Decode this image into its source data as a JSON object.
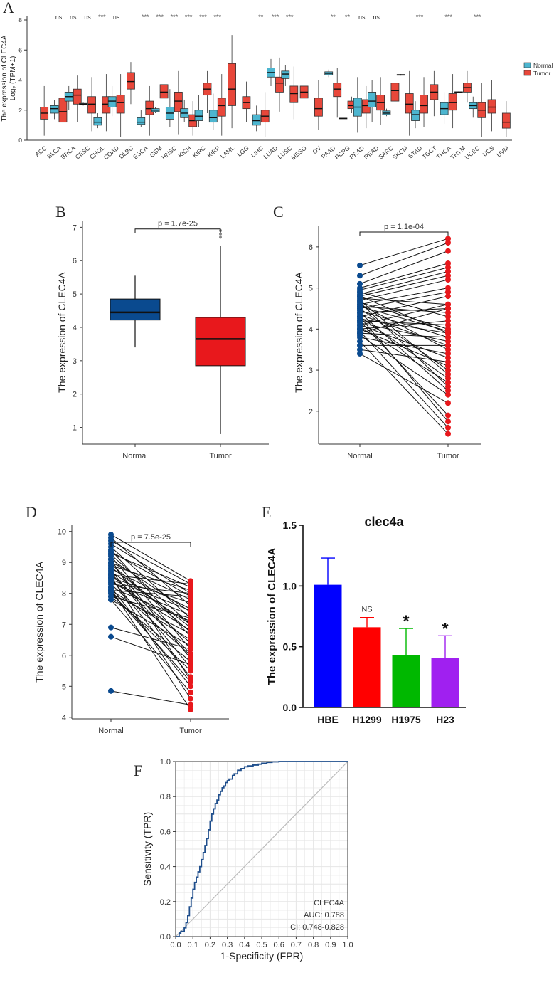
{
  "panels": {
    "A": "A",
    "B": "B",
    "C": "C",
    "D": "D",
    "E": "E",
    "F": "F"
  },
  "chart_data": [
    {
      "panel": "A",
      "type": "box",
      "ylabel_line1": "The expression of CLEC4A",
      "ylabel_line2_base": "Log",
      "ylabel_line2_sub": "2",
      "ylabel_line2_rest": " (TPM+1)",
      "ylim": [
        0,
        8
      ],
      "yticks": [
        0,
        2,
        4,
        6,
        8
      ],
      "legend": {
        "placement": "right",
        "entries": [
          "Normal",
          "Tumor"
        ]
      },
      "colors": {
        "normal": "#4db6d0",
        "tumor": "#e8473a"
      },
      "categories": [
        "ACC",
        "BLCA",
        "BRCA",
        "CESC",
        "CHOL",
        "COAD",
        "DLBC",
        "ESCA",
        "GBM",
        "HNSC",
        "KICH",
        "KIRC",
        "KIRP",
        "LAML",
        "LGG",
        "LIHC",
        "LUAD",
        "LUSC",
        "MESO",
        "OV",
        "PAAD",
        "PCPG",
        "PRAD",
        "READ",
        "SARC",
        "SKCM",
        "STAD",
        "TGCT",
        "THCA",
        "THYM",
        "UCEC",
        "UCS",
        "UVM"
      ],
      "significance": [
        "",
        "ns",
        "ns",
        "ns",
        "***",
        "ns",
        "",
        "***",
        "***",
        "***",
        "***",
        "***",
        "***",
        "",
        "",
        "**",
        "***",
        "***",
        "",
        "",
        "**",
        "**",
        "ns",
        "ns",
        "",
        "",
        "***",
        "",
        "***",
        "",
        "***",
        "",
        ""
      ],
      "normal": [
        null,
        [
          1.4,
          1.8,
          2.1,
          2.3,
          2.7
        ],
        [
          2.0,
          2.6,
          2.9,
          3.2,
          3.6
        ],
        [
          2.3,
          2.35,
          2.4,
          2.45,
          2.5
        ],
        [
          0.8,
          1.0,
          1.2,
          1.5,
          1.8
        ],
        [
          1.6,
          2.2,
          2.6,
          2.9,
          3.6
        ],
        null,
        [
          0.9,
          1.05,
          1.2,
          1.5,
          2.0
        ],
        [
          1.8,
          1.9,
          2.0,
          2.1,
          2.2
        ],
        [
          0.9,
          1.4,
          1.8,
          2.2,
          3.4
        ],
        [
          1.2,
          1.5,
          1.8,
          2.1,
          2.7
        ],
        [
          0.9,
          1.3,
          1.6,
          2.0,
          3.0
        ],
        [
          0.7,
          1.2,
          1.5,
          2.0,
          3.1
        ],
        null,
        null,
        [
          0.6,
          1.0,
          1.3,
          1.7,
          2.3
        ],
        [
          3.6,
          4.2,
          4.5,
          4.8,
          5.4
        ],
        [
          3.6,
          4.1,
          4.4,
          4.6,
          5.0
        ],
        null,
        null,
        [
          4.2,
          4.35,
          4.45,
          4.55,
          4.7
        ],
        [
          1.42,
          1.43,
          1.45,
          1.47,
          1.48
        ],
        [
          0.5,
          1.6,
          2.2,
          2.8,
          4.2
        ],
        [
          1.2,
          2.2,
          2.6,
          3.2,
          4.0
        ],
        [
          1.6,
          1.7,
          1.8,
          1.95,
          2.1
        ],
        [
          4.3,
          4.32,
          4.35,
          4.37,
          4.4
        ],
        [
          0.8,
          1.3,
          1.7,
          2.0,
          2.6
        ],
        null,
        [
          1.1,
          1.7,
          2.1,
          2.5,
          3.2
        ],
        [
          3.15,
          3.18,
          3.2,
          3.22,
          3.25
        ],
        [
          1.5,
          2.1,
          2.3,
          2.5,
          2.9
        ],
        null,
        null
      ],
      "tumor": [
        [
          0.3,
          1.4,
          1.8,
          2.2,
          3.6
        ],
        [
          0.2,
          1.2,
          1.9,
          2.8,
          4.2
        ],
        [
          1.2,
          2.4,
          3.0,
          3.4,
          4.3
        ],
        [
          0.6,
          1.8,
          2.4,
          2.9,
          4.2
        ],
        [
          0.6,
          1.8,
          2.4,
          2.9,
          4.4
        ],
        [
          0.2,
          1.8,
          2.5,
          3.0,
          4.4
        ],
        [
          2.4,
          3.4,
          3.9,
          4.5,
          5.2
        ],
        [
          0.3,
          1.7,
          2.1,
          2.6,
          3.6
        ],
        [
          1.8,
          2.8,
          3.2,
          3.7,
          4.4
        ],
        [
          0.4,
          1.9,
          2.6,
          3.2,
          4.6
        ],
        [
          0.3,
          0.9,
          1.3,
          1.7,
          2.6
        ],
        [
          1.8,
          3.0,
          3.4,
          3.8,
          4.6
        ],
        [
          0.3,
          1.6,
          2.3,
          2.8,
          4.4
        ],
        [
          0.8,
          2.3,
          3.4,
          5.1,
          7.0
        ],
        [
          1.2,
          2.1,
          2.5,
          2.9,
          3.9
        ],
        [
          0.2,
          1.2,
          1.6,
          2.0,
          3.2
        ],
        [
          1.9,
          3.2,
          3.8,
          4.2,
          5.5
        ],
        [
          1.4,
          2.5,
          3.1,
          3.6,
          4.9
        ],
        [
          1.6,
          2.8,
          3.2,
          3.6,
          4.4
        ],
        [
          0.7,
          1.6,
          2.1,
          2.8,
          4.0
        ],
        [
          1.5,
          2.9,
          3.4,
          3.8,
          4.8
        ],
        [
          1.8,
          2.1,
          2.3,
          2.6,
          2.9
        ],
        [
          0.8,
          1.8,
          2.3,
          2.7,
          3.6
        ],
        [
          1.0,
          2.0,
          2.5,
          3.0,
          4.2
        ],
        [
          1.1,
          2.6,
          3.3,
          3.8,
          5.2
        ],
        [
          0.3,
          1.8,
          2.4,
          3.1,
          4.6
        ],
        [
          0.9,
          1.8,
          2.3,
          3.0,
          4.2
        ],
        [
          1.6,
          2.7,
          3.2,
          3.7,
          4.6
        ],
        [
          0.8,
          2.0,
          2.5,
          3.1,
          4.4
        ],
        [
          2.5,
          3.2,
          3.5,
          3.8,
          4.6
        ],
        [
          0.2,
          1.5,
          2.0,
          2.5,
          3.8
        ],
        [
          0.6,
          1.8,
          2.2,
          2.7,
          4.0
        ],
        [
          0.2,
          0.8,
          1.2,
          1.8,
          2.6
        ]
      ]
    },
    {
      "panel": "B",
      "type": "box",
      "ylabel": "The expression of CLEC4A",
      "categories": [
        "Normal",
        "Tumor"
      ],
      "ylim": [
        0.5,
        7.2
      ],
      "yticks": [
        1,
        2,
        3,
        4,
        5,
        6,
        7
      ],
      "pvalue": "p = 1.7e-25",
      "colors": [
        "#0a4a8f",
        "#e8181c"
      ],
      "boxes": [
        [
          3.4,
          4.22,
          4.45,
          4.85,
          5.55
        ],
        [
          0.8,
          2.85,
          3.65,
          4.3,
          6.45
        ]
      ],
      "outliers": [
        [],
        [
          6.7,
          6.8,
          6.9
        ]
      ]
    },
    {
      "panel": "C",
      "type": "paired-dot",
      "ylabel": "The expression of CLEC4A",
      "categories": [
        "Normal",
        "Tumor"
      ],
      "ylim": [
        1.2,
        6.5
      ],
      "yticks": [
        2,
        3,
        4,
        5,
        6
      ],
      "pvalue": "p = 1.1e-04",
      "colors": [
        "#0a4a8f",
        "#e8181c"
      ],
      "pairs": [
        [
          5.55,
          6.2
        ],
        [
          5.3,
          6.1
        ],
        [
          5.1,
          5.9
        ],
        [
          5.0,
          5.6
        ],
        [
          4.95,
          5.5
        ],
        [
          4.9,
          4.3
        ],
        [
          4.85,
          5.4
        ],
        [
          4.8,
          3.9
        ],
        [
          4.8,
          5.3
        ],
        [
          4.75,
          4.6
        ],
        [
          4.7,
          2.9
        ],
        [
          4.7,
          5.2
        ],
        [
          4.65,
          4.0
        ],
        [
          4.6,
          3.5
        ],
        [
          4.6,
          5.0
        ],
        [
          4.55,
          4.4
        ],
        [
          4.5,
          3.0
        ],
        [
          4.5,
          4.9
        ],
        [
          4.45,
          3.8
        ],
        [
          4.4,
          2.5
        ],
        [
          4.4,
          4.5
        ],
        [
          4.35,
          3.6
        ],
        [
          4.3,
          4.8
        ],
        [
          4.3,
          2.8
        ],
        [
          4.25,
          3.9
        ],
        [
          4.2,
          4.1
        ],
        [
          4.2,
          1.9
        ],
        [
          4.15,
          3.7
        ],
        [
          4.1,
          4.6
        ],
        [
          4.1,
          3.3
        ],
        [
          4.05,
          2.7
        ],
        [
          4.0,
          4.2
        ],
        [
          4.0,
          3.1
        ],
        [
          3.95,
          1.6
        ],
        [
          3.9,
          3.8
        ],
        [
          3.9,
          4.5
        ],
        [
          3.85,
          2.4
        ],
        [
          3.8,
          3.4
        ],
        [
          3.7,
          1.45
        ],
        [
          3.6,
          3.6
        ],
        [
          3.5,
          3.2
        ],
        [
          3.4,
          2.2
        ],
        [
          4.3,
          1.75
        ],
        [
          4.55,
          3.95
        ],
        [
          4.65,
          2.6
        ]
      ]
    },
    {
      "panel": "D",
      "type": "paired-dot",
      "ylabel": "The expression of CLEC4A",
      "categories": [
        "Normal",
        "Tumor"
      ],
      "ylim": [
        3.95,
        10.2
      ],
      "yticks": [
        4,
        5,
        6,
        7,
        8,
        9,
        10
      ],
      "pvalue": "p = 7.5e-25",
      "colors": [
        "#0a4a8f",
        "#e8181c"
      ],
      "pairs": [
        [
          9.9,
          8.4
        ],
        [
          9.8,
          7.6
        ],
        [
          9.7,
          8.3
        ],
        [
          9.6,
          8.0
        ],
        [
          9.5,
          7.2
        ],
        [
          9.4,
          6.6
        ],
        [
          9.35,
          7.9
        ],
        [
          9.3,
          8.2
        ],
        [
          9.2,
          6.2
        ],
        [
          9.1,
          7.4
        ],
        [
          9.0,
          7.8
        ],
        [
          9.0,
          5.9
        ],
        [
          8.9,
          8.1
        ],
        [
          8.85,
          6.9
        ],
        [
          8.8,
          7.5
        ],
        [
          8.75,
          5.6
        ],
        [
          8.7,
          7.0
        ],
        [
          8.6,
          8.3
        ],
        [
          8.6,
          6.4
        ],
        [
          8.5,
          7.7
        ],
        [
          8.5,
          5.3
        ],
        [
          8.4,
          6.8
        ],
        [
          8.35,
          7.3
        ],
        [
          8.3,
          6.0
        ],
        [
          8.3,
          8.0
        ],
        [
          8.2,
          5.0
        ],
        [
          8.2,
          7.1
        ],
        [
          8.1,
          6.5
        ],
        [
          8.1,
          7.9
        ],
        [
          8.0,
          5.5
        ],
        [
          8.0,
          6.7
        ],
        [
          7.9,
          7.2
        ],
        [
          7.9,
          5.8
        ],
        [
          7.8,
          6.3
        ],
        [
          7.8,
          4.8
        ],
        [
          6.9,
          6.2
        ],
        [
          6.6,
          5.7
        ],
        [
          4.85,
          4.4
        ],
        [
          9.1,
          5.2
        ],
        [
          8.65,
          6.05
        ],
        [
          8.45,
          7.45
        ],
        [
          8.95,
          6.75
        ],
        [
          9.25,
          7.0
        ],
        [
          8.05,
          5.15
        ],
        [
          8.55,
          4.6
        ],
        [
          8.15,
          4.25
        ]
      ]
    },
    {
      "panel": "E",
      "type": "bar",
      "title": "clec4a",
      "ylabel": "The expression of CLEC4A",
      "categories": [
        "HBE",
        "H1299",
        "H1975",
        "H23"
      ],
      "values": [
        1.01,
        0.66,
        0.43,
        0.41
      ],
      "errors": [
        0.22,
        0.08,
        0.22,
        0.18
      ],
      "annotations": [
        "",
        "NS",
        "*",
        "*"
      ],
      "colors": [
        "#0000ff",
        "#ff0000",
        "#00b800",
        "#a020f0"
      ],
      "ylim": [
        0,
        1.5
      ],
      "yticks": [
        "0.0",
        "0.5",
        "1.0",
        "1.5"
      ]
    },
    {
      "panel": "F",
      "type": "line",
      "xlabel": "1-Specificity (FPR)",
      "ylabel": "Sensitivity (TPR)",
      "xlim": [
        0,
        1
      ],
      "ylim": [
        0,
        1
      ],
      "xticks": [
        "0.0",
        "0.1",
        "0.2",
        "0.3",
        "0.4",
        "0.5",
        "0.6",
        "0.7",
        "0.8",
        "0.9",
        "1.0"
      ],
      "yticks": [
        "0.0",
        "0.2",
        "0.4",
        "0.6",
        "0.8",
        "1.0"
      ],
      "legend_lines": [
        "CLEC4A",
        "AUC: 0.788",
        "CI: 0.748-0.828"
      ],
      "colors": {
        "roc": "#1f4e8c",
        "diagonal": "#bbbbbb"
      },
      "x": [
        0,
        0.02,
        0.03,
        0.05,
        0.06,
        0.07,
        0.08,
        0.09,
        0.1,
        0.11,
        0.12,
        0.13,
        0.14,
        0.15,
        0.16,
        0.17,
        0.18,
        0.19,
        0.2,
        0.21,
        0.22,
        0.23,
        0.24,
        0.25,
        0.26,
        0.27,
        0.28,
        0.29,
        0.3,
        0.31,
        0.33,
        0.34,
        0.36,
        0.38,
        0.4,
        0.42,
        0.45,
        0.48,
        0.5,
        0.53,
        0.56,
        0.6,
        0.7,
        0.8,
        0.9,
        1.0
      ],
      "y": [
        0,
        0.02,
        0.03,
        0.05,
        0.08,
        0.12,
        0.17,
        0.22,
        0.27,
        0.31,
        0.34,
        0.37,
        0.4,
        0.44,
        0.48,
        0.52,
        0.56,
        0.61,
        0.66,
        0.7,
        0.73,
        0.76,
        0.78,
        0.81,
        0.83,
        0.85,
        0.86,
        0.88,
        0.89,
        0.9,
        0.92,
        0.93,
        0.95,
        0.96,
        0.97,
        0.975,
        0.98,
        0.985,
        0.99,
        0.995,
        0.998,
        1.0,
        1.0,
        1.0,
        1.0,
        1.0
      ]
    }
  ]
}
